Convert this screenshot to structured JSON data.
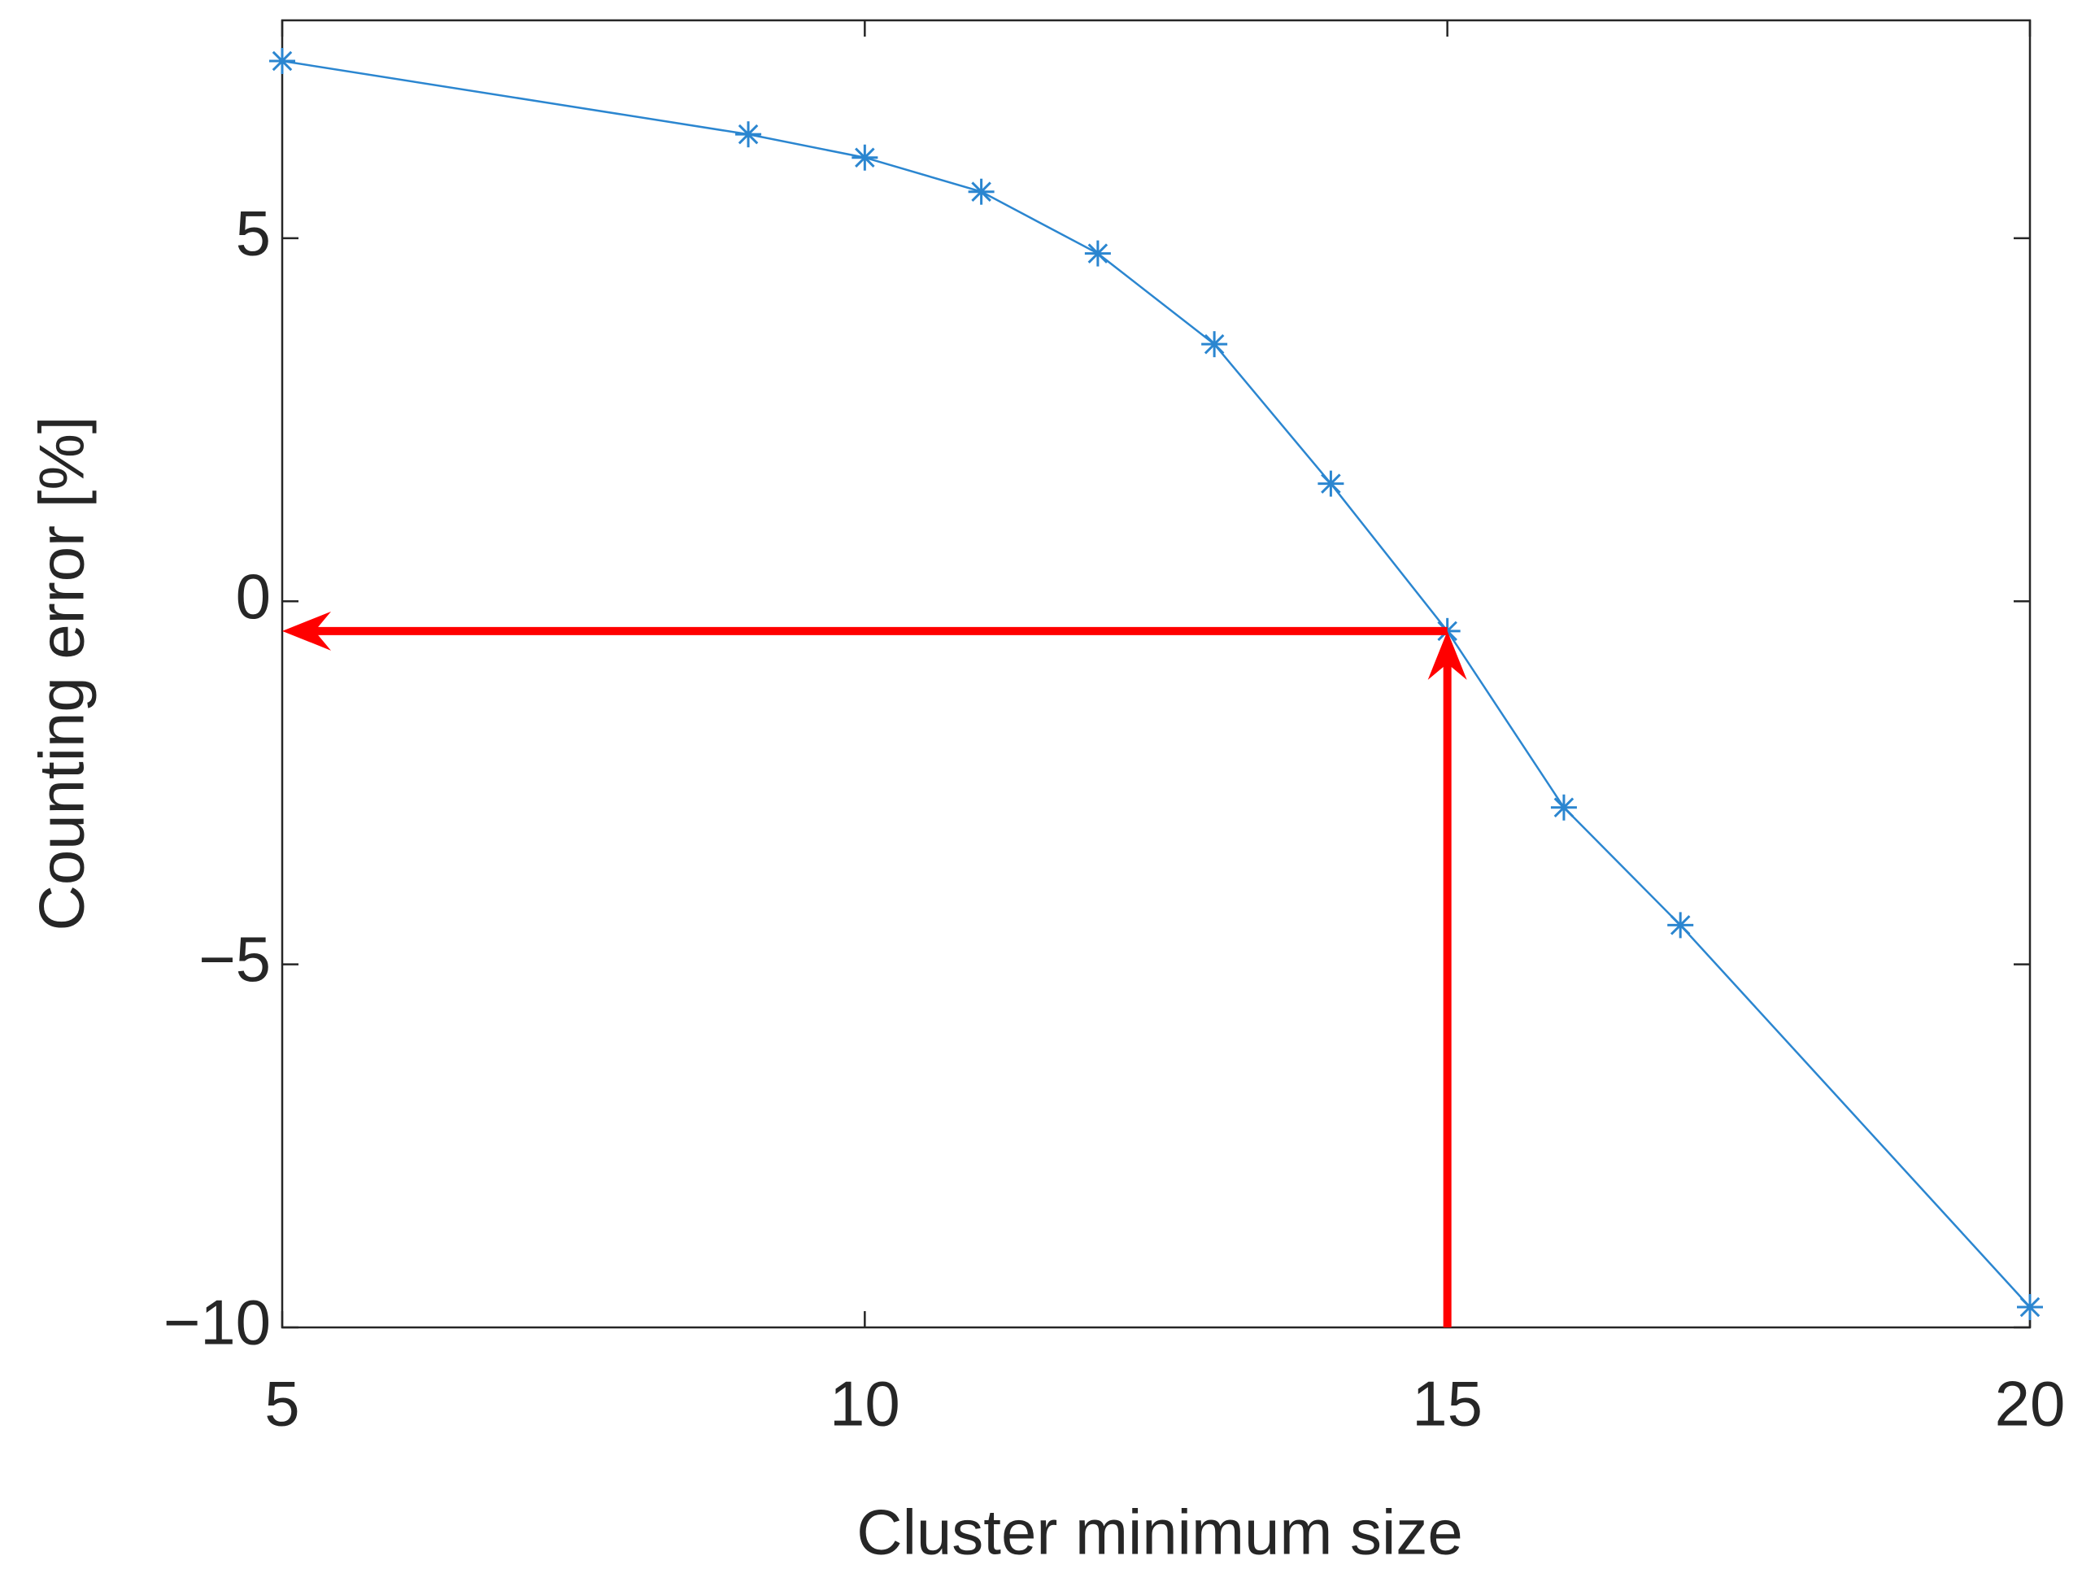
{
  "chart_data": {
    "type": "line",
    "x_label": "Cluster minimum size",
    "y_label": "Counting error [%]",
    "x": [
      5,
      9,
      10,
      11,
      12,
      13,
      14,
      15,
      16,
      17,
      20
    ],
    "series": [
      {
        "color": "#2b86d0",
        "values": [
          7.44,
          6.43,
          6.11,
          5.64,
          4.79,
          3.54,
          1.62,
          -0.41,
          -2.84,
          -4.46,
          -9.72
        ]
      }
    ],
    "xlim": [
      5,
      20
    ],
    "xticks": [
      5,
      10,
      15,
      20
    ],
    "ylim": [
      -10,
      8
    ],
    "yticks": [
      {
        "value": -10,
        "label": "−10"
      },
      {
        "value": -5,
        "label": "−5"
      },
      0,
      5
    ],
    "annotation_color": "#ff0000"
  }
}
